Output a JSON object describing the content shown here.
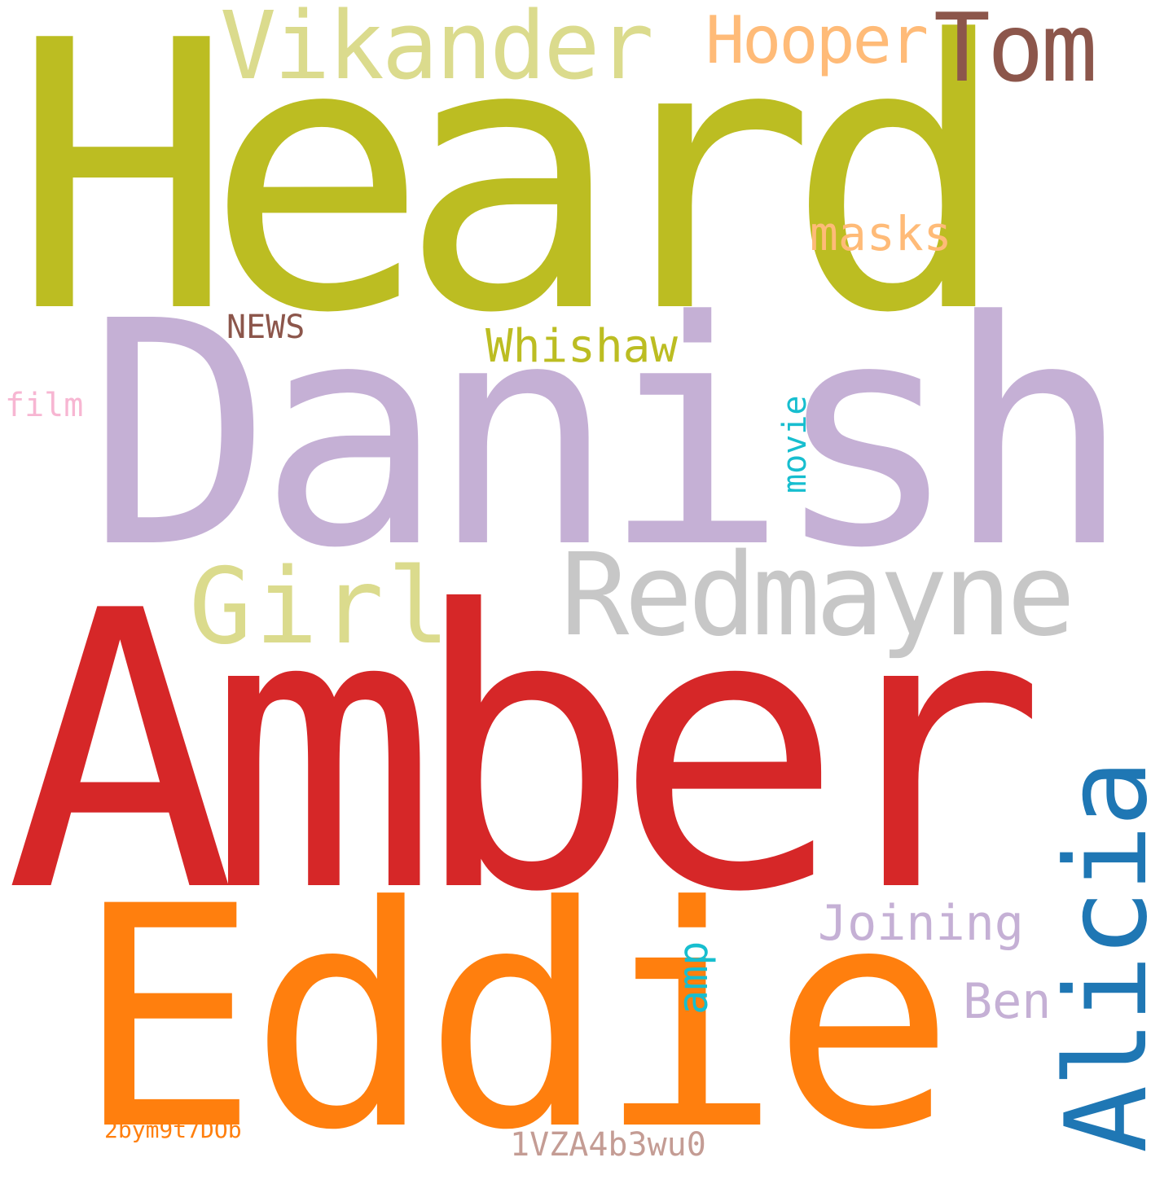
{
  "words": {
    "heard": {
      "text": "Heard",
      "color": "#bcbd22"
    },
    "danish": {
      "text": "Danish",
      "color": "#c5b0d5"
    },
    "amber": {
      "text": "Amber",
      "color": "#d62728"
    },
    "eddie": {
      "text": "Eddie",
      "color": "#ff7f0e"
    },
    "redmayne": {
      "text": "Redmayne",
      "color": "#c7c7c7"
    },
    "vikander": {
      "text": "Vikander",
      "color": "#dbdb8d"
    },
    "tom": {
      "text": "Tom",
      "color": "#8c564b"
    },
    "hooper": {
      "text": "Hooper",
      "color": "#ffbb78"
    },
    "girl": {
      "text": "Girl",
      "color": "#dbdb8d"
    },
    "alicia": {
      "text": "Alicia",
      "color": "#1f77b4"
    },
    "whishaw": {
      "text": "Whishaw",
      "color": "#bcbd22"
    },
    "masks": {
      "text": "masks",
      "color": "#ffbb78"
    },
    "news": {
      "text": "NEWS",
      "color": "#8c564b"
    },
    "film": {
      "text": "film",
      "color": "#f7b6d2"
    },
    "movie": {
      "text": "movie",
      "color": "#17becf"
    },
    "joining": {
      "text": "Joining",
      "color": "#c5b0d5"
    },
    "amp": {
      "text": "amp",
      "color": "#17becf"
    },
    "ben": {
      "text": "Ben",
      "color": "#c5b0d5"
    },
    "bym": {
      "text": "2bym9t7DOb",
      "color": "#ff7f0e"
    },
    "vza": {
      "text": "1VZA4b3wu0",
      "color": "#c49c94"
    }
  }
}
